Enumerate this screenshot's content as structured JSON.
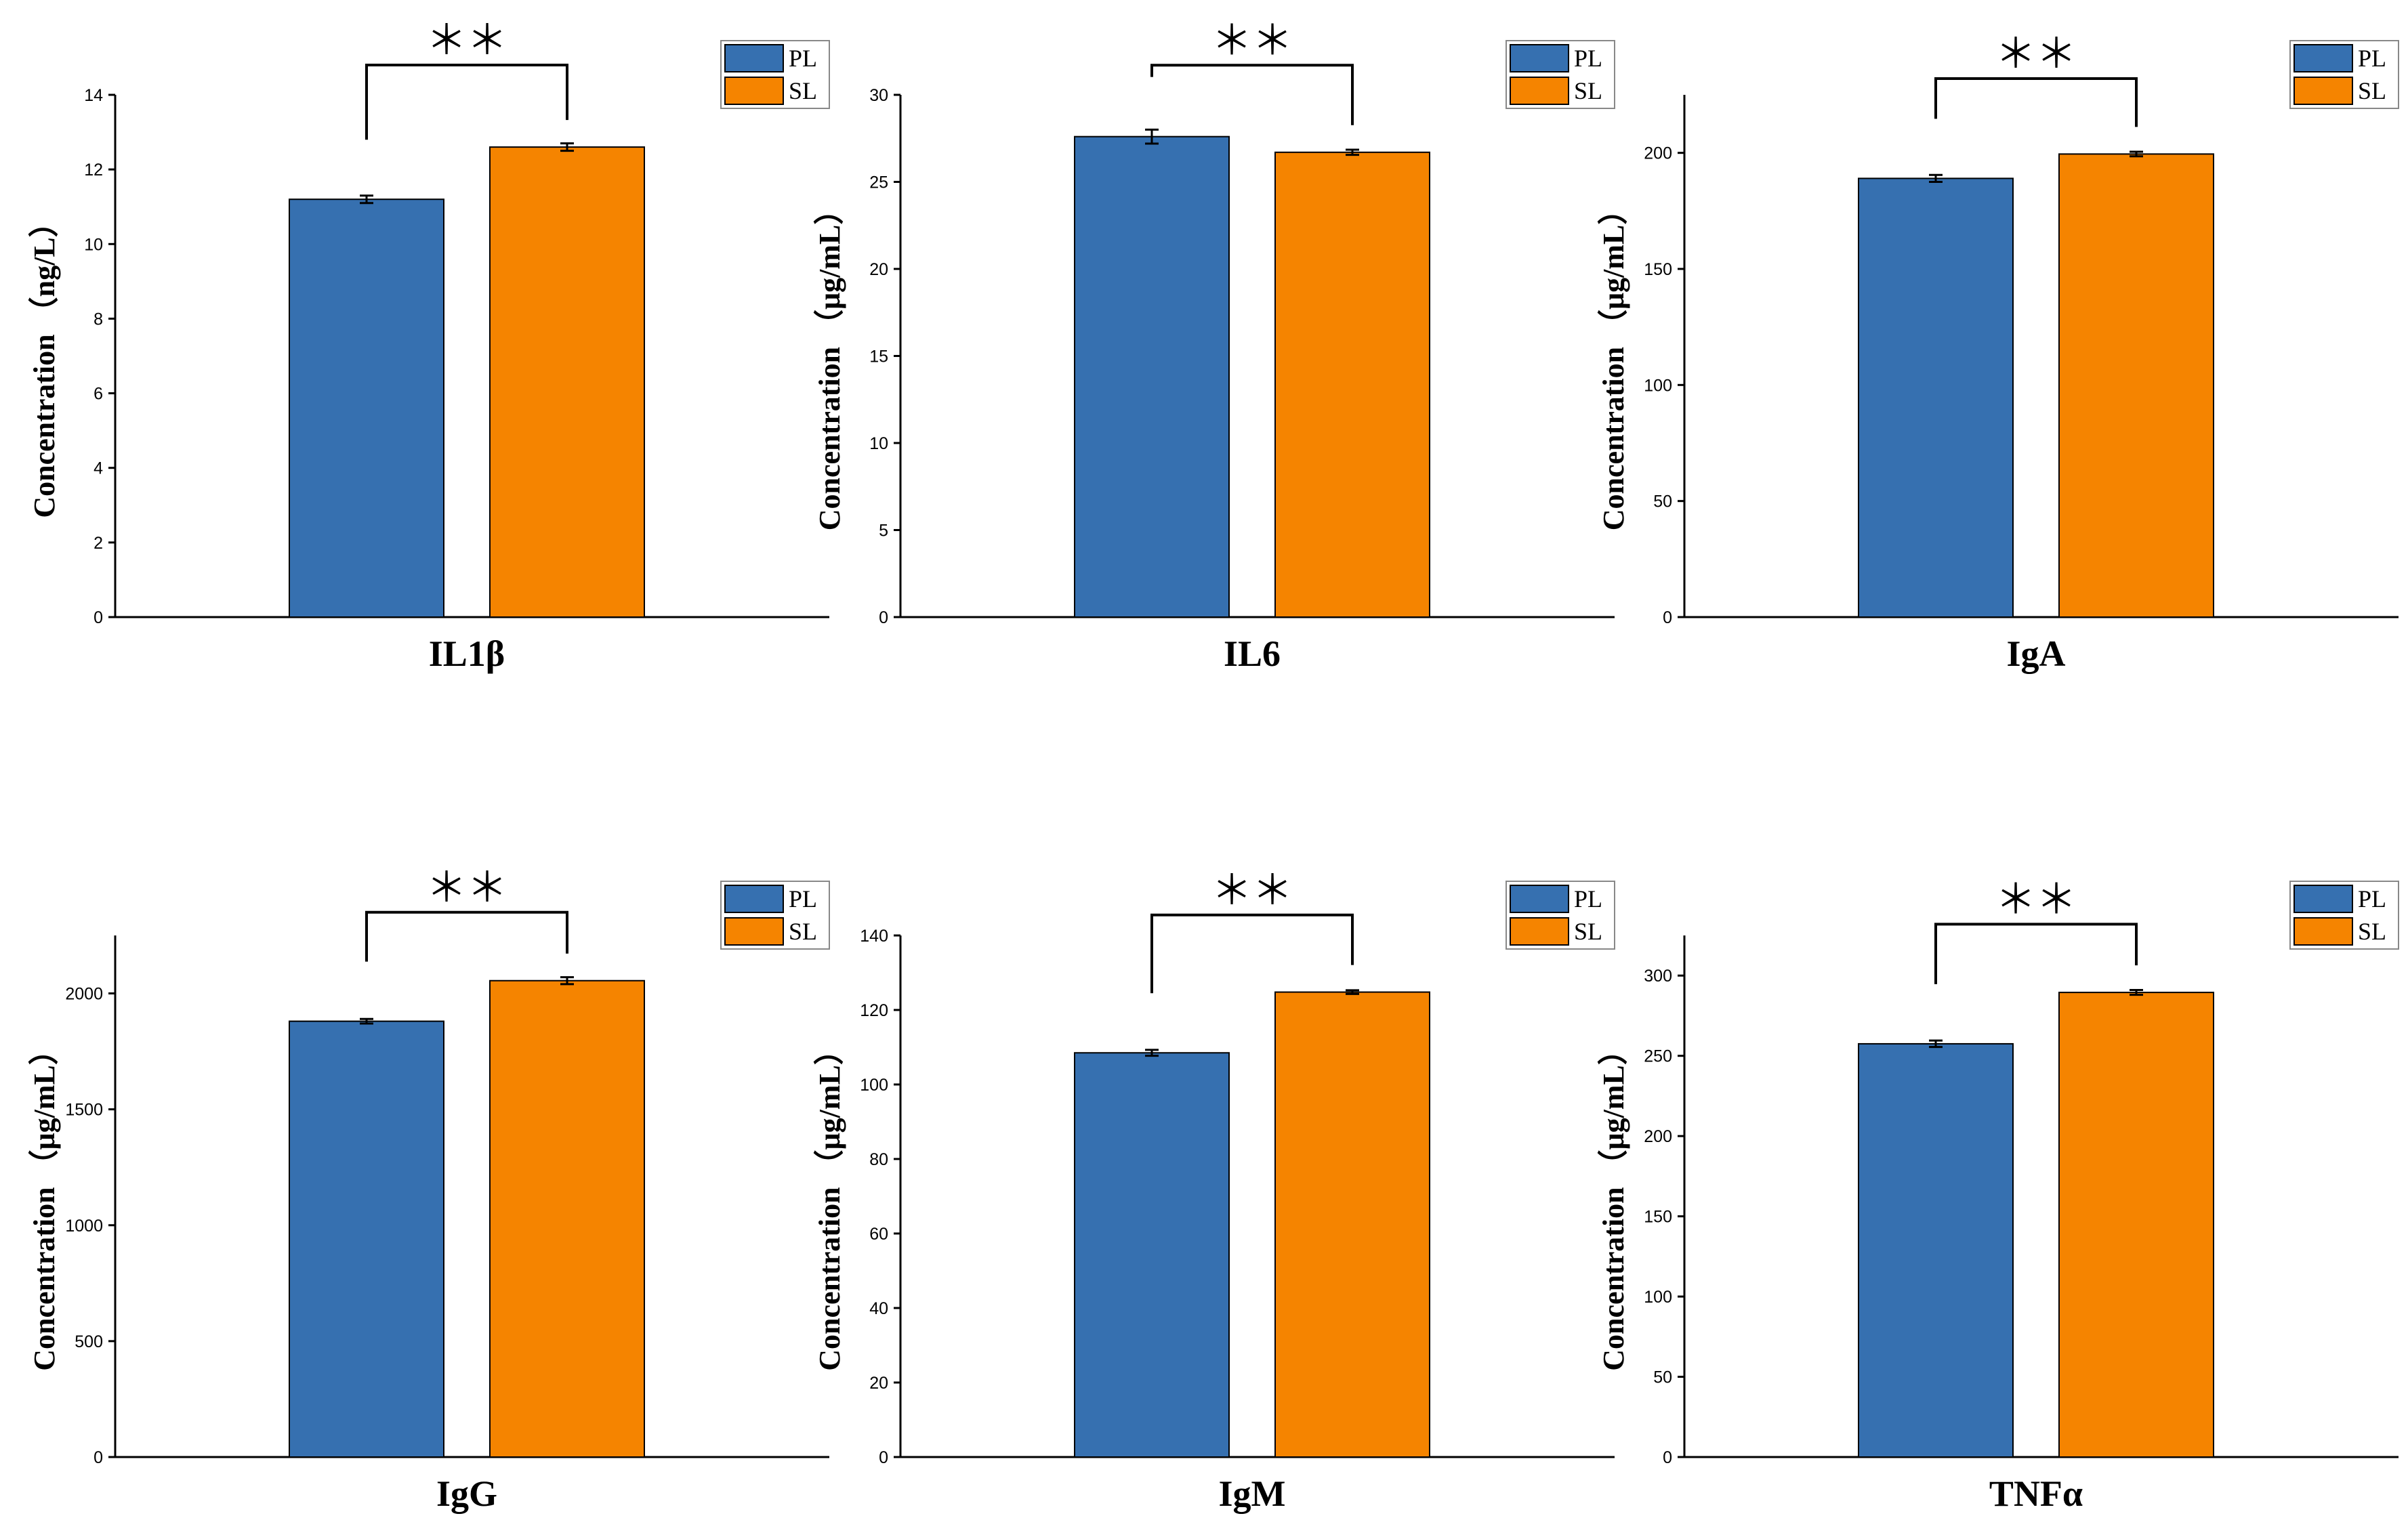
{
  "chart_data": [
    {
      "type": "bar",
      "category": "IL1β",
      "ylabel": "Concentration （ng/L）",
      "ylim": [
        0,
        14
      ],
      "yticks": [
        0,
        2,
        4,
        6,
        8,
        10,
        12,
        14
      ],
      "series": [
        {
          "name": "PL",
          "value": 11.2,
          "error": 0.1
        },
        {
          "name": "SL",
          "value": 12.6,
          "error": 0.1
        }
      ],
      "significance": "＊＊",
      "bracket_value": 14.8,
      "legend": [
        "PL",
        "SL"
      ]
    },
    {
      "type": "bar",
      "category": "IL6",
      "ylabel": "Concentration （μg/mL）",
      "ylim": [
        0,
        30
      ],
      "yticks": [
        0,
        5,
        10,
        15,
        20,
        25,
        30
      ],
      "series": [
        {
          "name": "PL",
          "value": 27.6,
          "error": 0.4
        },
        {
          "name": "SL",
          "value": 26.7,
          "error": 0.15
        }
      ],
      "significance": "＊＊",
      "bracket_value": 31.7,
      "legend": [
        "PL",
        "SL"
      ]
    },
    {
      "type": "bar",
      "category": "IgA",
      "ylabel": "Concentration （μg/mL）",
      "ylim": [
        0,
        225
      ],
      "yticks": [
        0,
        50,
        100,
        150,
        200
      ],
      "series": [
        {
          "name": "PL",
          "value": 189,
          "error": 1.5
        },
        {
          "name": "SL",
          "value": 199.5,
          "error": 1
        }
      ],
      "significance": "＊＊",
      "bracket_value": 232,
      "legend": [
        "PL",
        "SL"
      ]
    },
    {
      "type": "bar",
      "category": "IgG",
      "ylabel": "Concentration （μg/mL）",
      "ylim": [
        0,
        2250
      ],
      "yticks": [
        0,
        500,
        1000,
        1500,
        2000
      ],
      "series": [
        {
          "name": "PL",
          "value": 1880,
          "error": 10
        },
        {
          "name": "SL",
          "value": 2055,
          "error": 15
        }
      ],
      "significance": "＊＊",
      "bracket_value": 2350,
      "legend": [
        "PL",
        "SL"
      ]
    },
    {
      "type": "bar",
      "category": "IgM",
      "ylabel": "Concentration （μg/mL）",
      "ylim": [
        0,
        140
      ],
      "yticks": [
        0,
        20,
        40,
        60,
        80,
        100,
        120,
        140
      ],
      "series": [
        {
          "name": "PL",
          "value": 108.5,
          "error": 0.8
        },
        {
          "name": "SL",
          "value": 124.8,
          "error": 0.5
        }
      ],
      "significance": "＊＊",
      "bracket_value": 145.5,
      "legend": [
        "PL",
        "SL"
      ]
    },
    {
      "type": "bar",
      "category": "TNFα",
      "ylabel": "Concentration （μg/mL）",
      "ylim": [
        0,
        325
      ],
      "yticks": [
        0,
        50,
        100,
        150,
        200,
        250,
        300
      ],
      "series": [
        {
          "name": "PL",
          "value": 257.5,
          "error": 2
        },
        {
          "name": "SL",
          "value": 289.5,
          "error": 1.5
        }
      ],
      "significance": "＊＊",
      "bracket_value": 332,
      "legend": [
        "PL",
        "SL"
      ]
    }
  ],
  "colors": {
    "PL": "#3670b0",
    "SL": "#f58400",
    "axis": "#000000"
  }
}
